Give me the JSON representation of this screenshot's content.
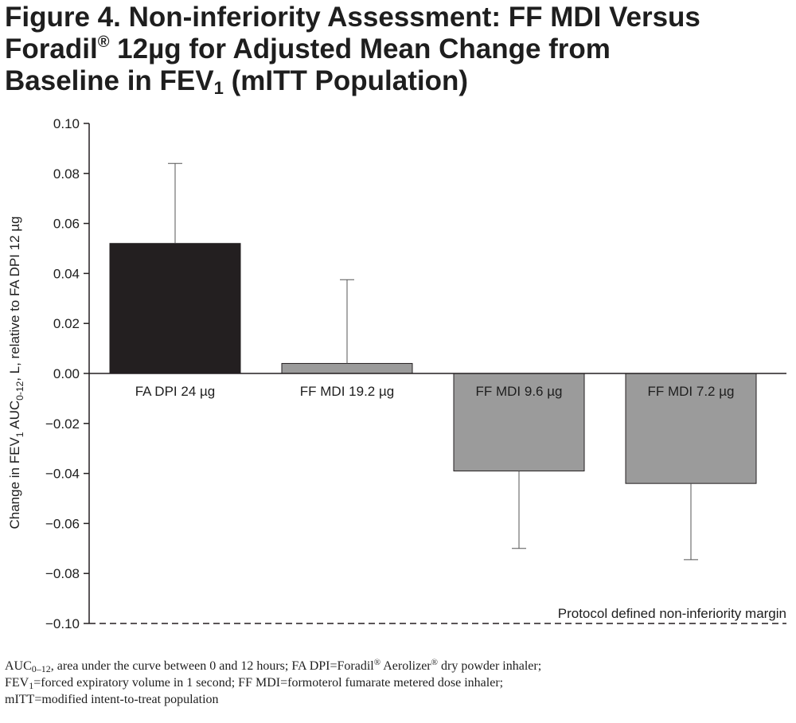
{
  "title": {
    "line1": "Figure 4. Non-inferiority Assessment: FF MDI Versus",
    "line2_pre": "Foradil",
    "line2_sup": "®",
    "line2_post": " 12µg for Adjusted Mean Change from",
    "line3_pre": "Baseline in FEV",
    "line3_sub": "1",
    "line3_post": " (mITT Population)"
  },
  "chart_data": {
    "type": "bar",
    "categories": [
      "FA DPI 24 µg",
      "FF MDI 19.2 µg",
      "FF MDI 9.6 µg",
      "FF MDI 7.2 µg"
    ],
    "values": [
      0.052,
      0.004,
      -0.039,
      -0.044
    ],
    "error_bars": [
      0.084,
      0.0375,
      -0.07,
      -0.0745
    ],
    "bar_colors": [
      "#231f20",
      "#9b9b9b",
      "#9b9b9b",
      "#9b9b9b"
    ],
    "ylim": [
      -0.1,
      0.1
    ],
    "yticks": [
      "0.10",
      "0.08",
      "0.06",
      "0.04",
      "0.02",
      "0.00",
      "−0.02",
      "−0.04",
      "−0.06",
      "−0.08",
      "−0.10"
    ],
    "ytick_values": [
      0.1,
      0.08,
      0.06,
      0.04,
      0.02,
      0.0,
      -0.02,
      -0.04,
      -0.06,
      -0.08,
      -0.1
    ],
    "ylabel": {
      "part1": "Change in FEV",
      "sub1": "1",
      "part2": " AUC",
      "sub2": "0-12",
      "part3": ", L, relative to FA DPI 12 µg"
    },
    "reference_line": {
      "value": -0.1,
      "label": "Protocol defined non-inferiority margin",
      "style": "dashed"
    },
    "grid": false
  },
  "footnote": {
    "l1_a": "AUC",
    "l1_sub": "0–12",
    "l1_b": ", area under the curve between 0 and 12 hours; FA DPI=Foradil",
    "l1_sup1": "®",
    "l1_c": " Aerolizer",
    "l1_sup2": "®",
    "l1_d": " dry powder inhaler;",
    "l2_a": "FEV",
    "l2_sub": "1",
    "l2_b": "=forced expiratory volume in 1 second; FF MDI=formoterol fumarate metered dose inhaler;",
    "l3": "mITT=modified intent-to-treat population"
  }
}
